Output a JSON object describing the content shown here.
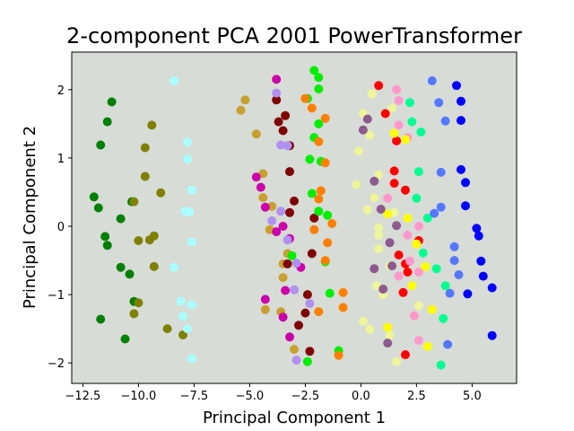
{
  "chart_data": {
    "type": "scatter",
    "title": "2-component PCA 2001 PowerTransformer",
    "xlabel": "Principal Component 1",
    "ylabel": "Principal Component 2",
    "xlim": [
      -13.0,
      7.0
    ],
    "ylim": [
      -2.3,
      2.55
    ],
    "xticks": [
      -12.5,
      -10.0,
      -7.5,
      -5.0,
      -2.5,
      0.0,
      2.5,
      5.0
    ],
    "xtick_labels": [
      "−12.5",
      "−10.0",
      "−7.5",
      "−5.0",
      "−2.5",
      "0.0",
      "2.5",
      "5.0"
    ],
    "yticks": [
      -2,
      -1,
      0,
      1,
      2
    ],
    "ytick_labels": [
      "−2",
      "−1",
      "0",
      "1",
      "2"
    ],
    "grid": false,
    "background_color": "#d7dcd7",
    "series": [
      {
        "name": "green",
        "color": "#008000",
        "points": [
          [
            -11.2,
            1.82
          ],
          [
            -11.4,
            1.53
          ],
          [
            -11.7,
            1.19
          ],
          [
            -12.0,
            0.43
          ],
          [
            -11.8,
            0.27
          ],
          [
            -11.5,
            -0.15
          ],
          [
            -11.4,
            -0.28
          ],
          [
            -10.8,
            0.11
          ],
          [
            -10.3,
            0.36
          ],
          [
            -10.8,
            -0.6
          ],
          [
            -10.4,
            -0.7
          ],
          [
            -11.7,
            -1.36
          ],
          [
            -10.2,
            -1.1
          ],
          [
            -10.6,
            -1.65
          ]
        ]
      },
      {
        "name": "olive",
        "color": "#808000",
        "points": [
          [
            -9.4,
            1.48
          ],
          [
            -9.7,
            1.15
          ],
          [
            -9.7,
            0.73
          ],
          [
            -9.0,
            0.49
          ],
          [
            -10.2,
            0.36
          ],
          [
            -9.3,
            -0.14
          ],
          [
            -9.5,
            -0.2
          ],
          [
            -10.0,
            -0.21
          ],
          [
            -9.3,
            -0.59
          ],
          [
            -10.0,
            -1.12
          ],
          [
            -10.2,
            -1.28
          ],
          [
            -8.7,
            -1.5
          ],
          [
            -8.0,
            -1.59
          ]
        ]
      },
      {
        "name": "cyan",
        "color": "#aaffff",
        "points": [
          [
            -8.4,
            2.13
          ],
          [
            -7.8,
            1.23
          ],
          [
            -7.8,
            0.98
          ],
          [
            -7.6,
            0.53
          ],
          [
            -7.9,
            0.22
          ],
          [
            -7.7,
            0.21
          ],
          [
            -7.6,
            -0.23
          ],
          [
            -8.4,
            -0.6
          ],
          [
            -8.1,
            -1.1
          ],
          [
            -7.6,
            -1.15
          ],
          [
            -8.0,
            -1.32
          ],
          [
            -7.8,
            -1.5
          ],
          [
            -7.6,
            -1.94
          ]
        ]
      },
      {
        "name": "goldenrod",
        "color": "#c8a030",
        "points": [
          [
            -5.2,
            1.85
          ],
          [
            -5.4,
            1.7
          ],
          [
            -4.7,
            1.35
          ],
          [
            -4.4,
            0.77
          ],
          [
            -4.4,
            0.42
          ],
          [
            -4.0,
            0.29
          ],
          [
            -4.1,
            -0.05
          ],
          [
            -3.5,
            -0.55
          ],
          [
            -3.5,
            -0.75
          ],
          [
            -3.6,
            -1.25
          ],
          [
            -3.0,
            -1.8
          ],
          [
            -4.3,
            -1.22
          ],
          [
            -3.3,
            -0.4
          ]
        ]
      },
      {
        "name": "magenta",
        "color": "#cc00aa",
        "points": [
          [
            -3.8,
            2.15
          ],
          [
            -4.7,
            0.72
          ],
          [
            -4.5,
            0.57
          ],
          [
            -4.3,
            0.28
          ],
          [
            -4.3,
            -1.07
          ],
          [
            -3.4,
            -0.94
          ],
          [
            -3.5,
            -1.33
          ],
          [
            -3.2,
            -1.62
          ],
          [
            -3.8,
            -0.08
          ],
          [
            -3.5,
            0.0
          ],
          [
            -3.2,
            -0.18
          ],
          [
            -2.7,
            -0.6
          ]
        ]
      },
      {
        "name": "darkred",
        "color": "#800000",
        "points": [
          [
            -3.8,
            1.85
          ],
          [
            -3.4,
            1.62
          ],
          [
            -3.7,
            1.53
          ],
          [
            -3.5,
            1.4
          ],
          [
            -3.2,
            1.18
          ],
          [
            -3.2,
            0.8
          ],
          [
            -3.0,
            0.37
          ],
          [
            -3.2,
            0.2
          ],
          [
            -3.3,
            -0.55
          ],
          [
            -2.4,
            -1.0
          ],
          [
            -2.5,
            -1.27
          ],
          [
            -2.8,
            -1.45
          ],
          [
            -2.3,
            -1.83
          ],
          [
            -2.2,
            -0.4
          ],
          [
            -2.1,
            0.12
          ]
        ]
      },
      {
        "name": "purple_light",
        "color": "#b090f0",
        "points": [
          [
            -3.8,
            1.95
          ],
          [
            -3.6,
            1.19
          ],
          [
            -3.3,
            1.18
          ],
          [
            -4.0,
            0.08
          ],
          [
            -3.6,
            0.22
          ],
          [
            -3.3,
            -0.2
          ],
          [
            -2.9,
            -0.54
          ],
          [
            -3.0,
            -0.93
          ],
          [
            -2.3,
            -1.13
          ],
          [
            -2.9,
            -1.96
          ]
        ]
      },
      {
        "name": "lime",
        "color": "#00ee00",
        "points": [
          [
            -2.1,
            2.28
          ],
          [
            -1.9,
            2.18
          ],
          [
            -1.9,
            2.01
          ],
          [
            -2.4,
            1.87
          ],
          [
            -1.9,
            1.5
          ],
          [
            -2.1,
            1.3
          ],
          [
            -2.3,
            0.98
          ],
          [
            -1.8,
            0.95
          ],
          [
            -2.2,
            0.48
          ],
          [
            -1.9,
            0.22
          ],
          [
            -1.5,
            0.16
          ],
          [
            -3.1,
            -0.43
          ],
          [
            -1.6,
            -0.52
          ],
          [
            -1.4,
            -0.98
          ],
          [
            -1.0,
            -1.82
          ],
          [
            -2.4,
            -1.98
          ]
        ]
      },
      {
        "name": "orange",
        "color": "#ff7f00",
        "points": [
          [
            -2.5,
            1.87
          ],
          [
            -2.2,
            1.73
          ],
          [
            -1.6,
            1.58
          ],
          [
            -1.9,
            1.24
          ],
          [
            -1.6,
            0.93
          ],
          [
            -1.8,
            0.52
          ],
          [
            -1.9,
            0.4
          ],
          [
            -2.1,
            -0.05
          ],
          [
            -1.3,
            0.04
          ],
          [
            -1.5,
            -0.24
          ],
          [
            -1.6,
            -0.5
          ],
          [
            -1.9,
            -1.25
          ],
          [
            -0.8,
            -0.97
          ],
          [
            -0.8,
            -1.19
          ],
          [
            -1.0,
            -1.89
          ]
        ]
      },
      {
        "name": "lightyellow",
        "color": "#eef59a",
        "points": [
          [
            0.5,
            1.94
          ],
          [
            0.1,
            1.65
          ],
          [
            1.4,
            1.73
          ],
          [
            0.4,
            1.33
          ],
          [
            -0.1,
            1.1
          ],
          [
            0.8,
            0.75
          ],
          [
            -0.2,
            0.61
          ],
          [
            0.6,
            0.42
          ],
          [
            0.3,
            0.24
          ],
          [
            1.5,
            0.2
          ],
          [
            0.8,
            -0.02
          ],
          [
            0.8,
            -0.13
          ],
          [
            0.8,
            -0.33
          ],
          [
            1.3,
            -0.58
          ],
          [
            0.7,
            -0.87
          ],
          [
            0.1,
            -1.39
          ],
          [
            1.0,
            -1.0
          ],
          [
            0.4,
            -1.51
          ],
          [
            1.3,
            -1.59
          ],
          [
            1.6,
            -1.98
          ],
          [
            2.6,
            -1.16
          ]
        ]
      },
      {
        "name": "red",
        "color": "#ff0000",
        "points": [
          [
            0.8,
            2.06
          ],
          [
            1.1,
            1.65
          ],
          [
            1.6,
            1.25
          ],
          [
            1.5,
            0.81
          ],
          [
            2.0,
            0.53
          ],
          [
            1.5,
            0.63
          ],
          [
            2.6,
            -0.21
          ],
          [
            1.7,
            -0.42
          ],
          [
            2.0,
            -0.55
          ],
          [
            2.1,
            -0.67
          ],
          [
            1.9,
            -0.97
          ],
          [
            2.0,
            -1.88
          ]
        ]
      },
      {
        "name": "pink",
        "color": "#ff99cc",
        "points": [
          [
            1.6,
            2.0
          ],
          [
            1.7,
            1.84
          ],
          [
            1.7,
            1.48
          ],
          [
            2.1,
            1.3
          ],
          [
            1.2,
            0.41
          ],
          [
            2.6,
            0.0
          ],
          [
            2.1,
            -0.13
          ],
          [
            2.2,
            -0.51
          ],
          [
            2.6,
            -0.67
          ],
          [
            1.7,
            -0.73
          ],
          [
            2.4,
            -1.31
          ],
          [
            2.6,
            -1.67
          ]
        ]
      },
      {
        "name": "yellow",
        "color": "#ffff00",
        "points": [
          [
            1.5,
            1.36
          ],
          [
            2.0,
            1.27
          ],
          [
            1.2,
            0.18
          ],
          [
            2.1,
            0.12
          ],
          [
            2.5,
            -0.26
          ],
          [
            2.9,
            -0.59
          ],
          [
            2.3,
            -0.87
          ],
          [
            3.2,
            -1.22
          ],
          [
            1.2,
            -1.48
          ],
          [
            3.0,
            -1.76
          ]
        ]
      },
      {
        "name": "mauve",
        "color": "#8c5a8c",
        "points": [
          [
            0.1,
            1.41
          ],
          [
            0.3,
            1.57
          ],
          [
            0.6,
            0.66
          ],
          [
            0.9,
            0.25
          ],
          [
            1.6,
            0.01
          ],
          [
            0.6,
            -0.62
          ],
          [
            1.0,
            -0.92
          ],
          [
            1.4,
            -0.58
          ],
          [
            1.2,
            -1.71
          ],
          [
            1.3,
            -0.24
          ]
        ]
      },
      {
        "name": "springgreen",
        "color": "#00ff90",
        "points": [
          [
            2.2,
            1.81
          ],
          [
            2.3,
            1.53
          ],
          [
            2.7,
            1.38
          ],
          [
            2.6,
            0.8
          ],
          [
            2.5,
            0.41
          ],
          [
            3.0,
            0.12
          ],
          [
            2.8,
            -0.39
          ],
          [
            3.4,
            -0.62
          ],
          [
            3.8,
            -0.87
          ],
          [
            3.7,
            -1.35
          ],
          [
            3.6,
            -2.03
          ]
        ]
      },
      {
        "name": "royalblue",
        "color": "#5577ff",
        "points": [
          [
            3.2,
            2.13
          ],
          [
            3.5,
            1.81
          ],
          [
            3.8,
            1.54
          ],
          [
            3.6,
            0.79
          ],
          [
            3.6,
            0.28
          ],
          [
            3.3,
            0.19
          ],
          [
            4.2,
            -0.3
          ],
          [
            4.2,
            -0.5
          ],
          [
            4.4,
            -0.71
          ],
          [
            4.0,
            -0.98
          ],
          [
            3.9,
            -1.73
          ]
        ]
      },
      {
        "name": "blue",
        "color": "#0000ff",
        "points": [
          [
            4.3,
            2.06
          ],
          [
            4.5,
            1.83
          ],
          [
            4.5,
            1.55
          ],
          [
            4.5,
            0.83
          ],
          [
            4.7,
            0.64
          ],
          [
            4.7,
            0.3
          ],
          [
            5.2,
            -0.03
          ],
          [
            5.3,
            -0.14
          ],
          [
            5.4,
            -0.51
          ],
          [
            5.5,
            -0.73
          ],
          [
            4.8,
            -0.99
          ],
          [
            5.9,
            -0.9
          ],
          [
            5.9,
            -1.6
          ]
        ]
      }
    ]
  }
}
